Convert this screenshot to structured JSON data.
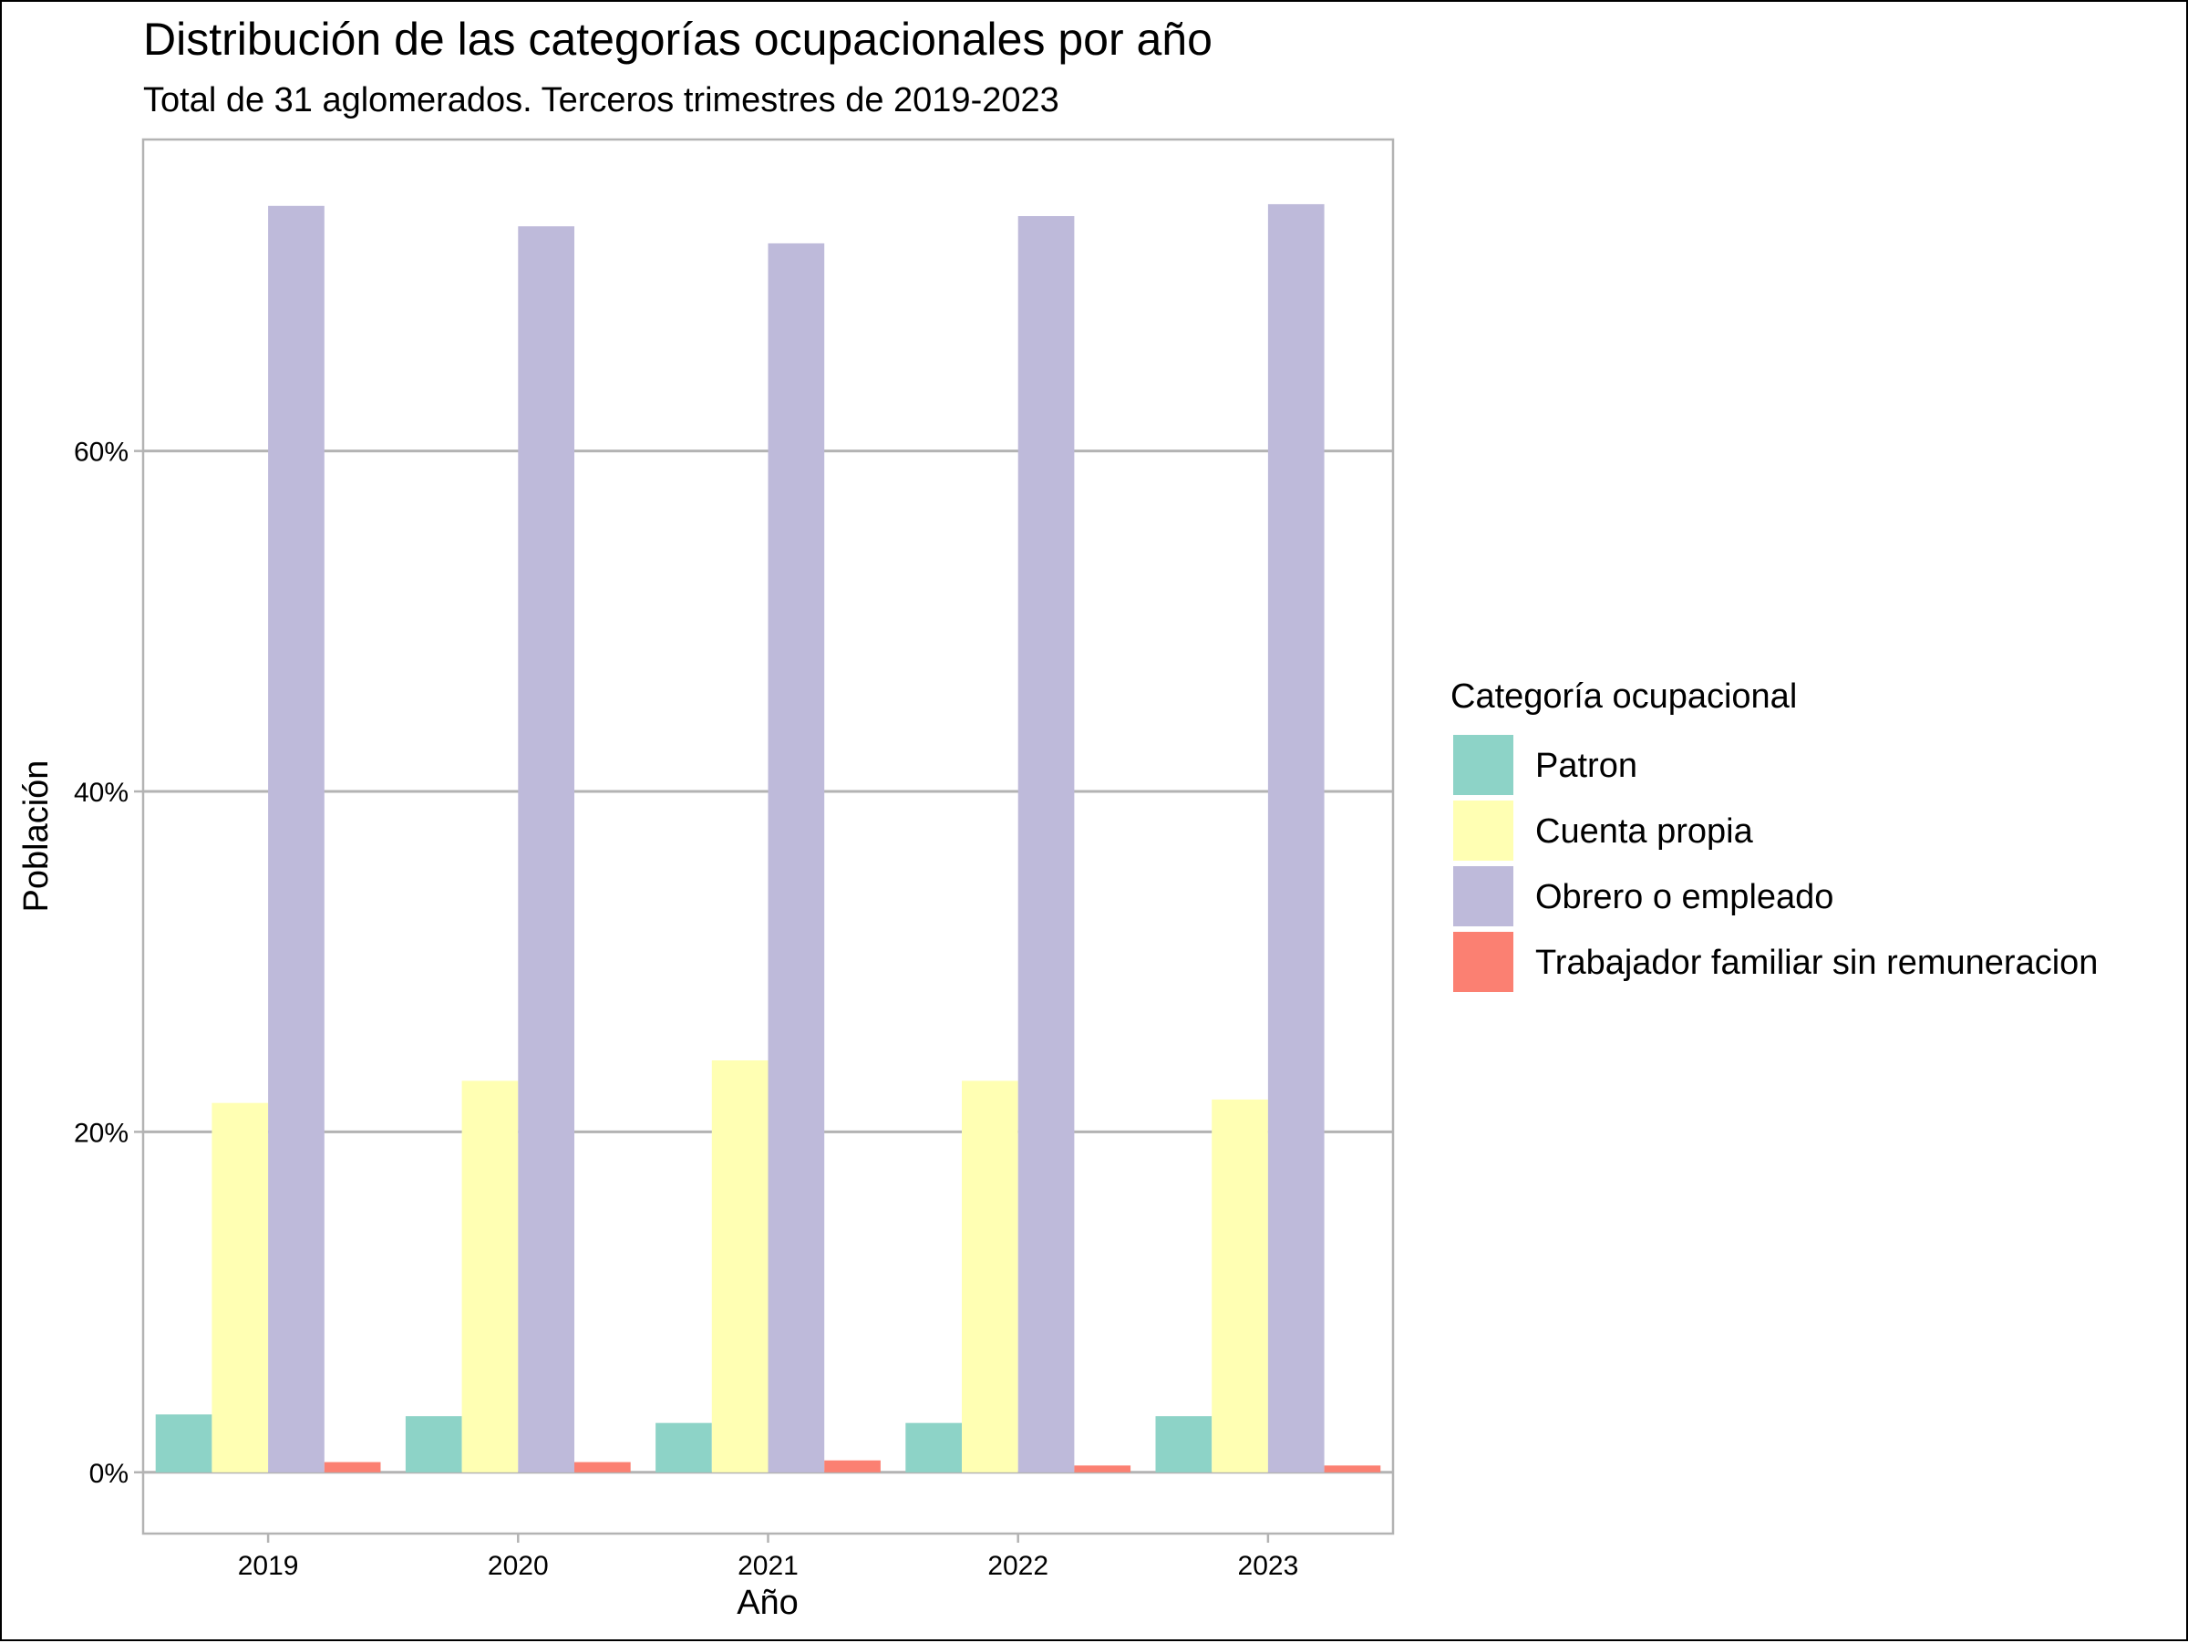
{
  "chart_data": {
    "type": "bar",
    "title": "Distribución de las categorías ocupacionales por año",
    "subtitle": "Total de 31 aglomerados. Terceros trimestres de 2019-2023",
    "xlabel": "Año",
    "ylabel": "Población",
    "categories": [
      "2019",
      "2020",
      "2021",
      "2022",
      "2023"
    ],
    "ylim": [
      -0.036,
      0.783
    ],
    "yticks": [
      0,
      0.2,
      0.4,
      0.6
    ],
    "ytick_labels": [
      "0%",
      "20%",
      "40%",
      "60%"
    ],
    "grid": true,
    "legend": {
      "title": "Categoría ocupacional",
      "position": "right"
    },
    "series": [
      {
        "name": "Patron",
        "color": "#8DD3C7",
        "values": [
          0.034,
          0.033,
          0.029,
          0.029,
          0.033
        ]
      },
      {
        "name": "Cuenta propia",
        "color": "#FFFFB3",
        "values": [
          0.217,
          0.23,
          0.242,
          0.23,
          0.219
        ]
      },
      {
        "name": "Obrero o empleado",
        "color": "#BEBADA",
        "values": [
          0.744,
          0.732,
          0.722,
          0.738,
          0.745
        ]
      },
      {
        "name": "Trabajador familiar sin remuneracion",
        "color": "#FB8072",
        "values": [
          0.006,
          0.006,
          0.007,
          0.004,
          0.004
        ]
      }
    ]
  }
}
